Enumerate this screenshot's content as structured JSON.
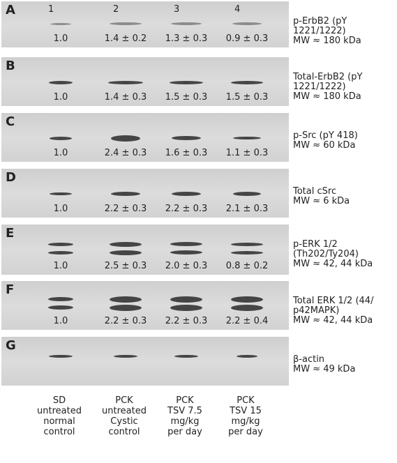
{
  "lanes": [
    "1",
    "2",
    "3",
    "4"
  ],
  "panels": [
    {
      "letter": "A",
      "values": [
        "1.0",
        "1.4 ± 0.2",
        "1.3 ± 0.3",
        "0.9 ± 0.3"
      ],
      "label": [
        "p-ErbB2 (pY",
        "1221/1222)",
        "MW ≈ 180 kDa"
      ]
    },
    {
      "letter": "B",
      "values": [
        "1.0",
        "1.4 ± 0.3",
        "1.5 ± 0.3",
        "1.5 ± 0.3"
      ],
      "label": [
        "Total-ErbB2 (pY",
        "1221/1222)",
        "MW ≈ 180 kDa"
      ]
    },
    {
      "letter": "C",
      "values": [
        "1.0",
        "2.4 ± 0.3",
        "1.6 ± 0.3",
        "1.1 ± 0.3"
      ],
      "label": [
        "p-Src (pY 418)",
        "MW ≈ 60 kDa"
      ]
    },
    {
      "letter": "D",
      "values": [
        "1.0",
        "2.2 ± 0.3",
        "2.2 ± 0.3",
        "2.1 ± 0.3"
      ],
      "label": [
        "Total cSrc",
        "MW ≈ 6 kDa"
      ]
    },
    {
      "letter": "E",
      "values": [
        "1.0",
        "2.5 ± 0.3",
        "2.0 ± 0.3",
        "0.8 ± 0.2"
      ],
      "label": [
        "p-ERK 1/2",
        "(Th202/Ty204)",
        "MW ≈ 42, 44 kDa"
      ]
    },
    {
      "letter": "F",
      "values": [
        "1.0",
        "2.2 ± 0.3",
        "2.2 ± 0.3",
        "2.2 ± 0.4"
      ],
      "label": [
        "Total ERK 1/2 (44/",
        "p42MAPK)",
        "MW ≈ 42, 44 kDa"
      ]
    },
    {
      "letter": "G",
      "values": [],
      "label": [
        "β-actin",
        "MW ≈ 49 kDa"
      ]
    }
  ],
  "groups": [
    [
      "SD",
      "untreated",
      "normal",
      "control"
    ],
    [
      "PCK",
      "untreated",
      "Cystic",
      "control"
    ],
    [
      "PCK",
      "TSV 7.5",
      "mg/kg",
      "per day"
    ],
    [
      "PCK",
      "TSV 15",
      "mg/kg",
      "per day"
    ]
  ]
}
